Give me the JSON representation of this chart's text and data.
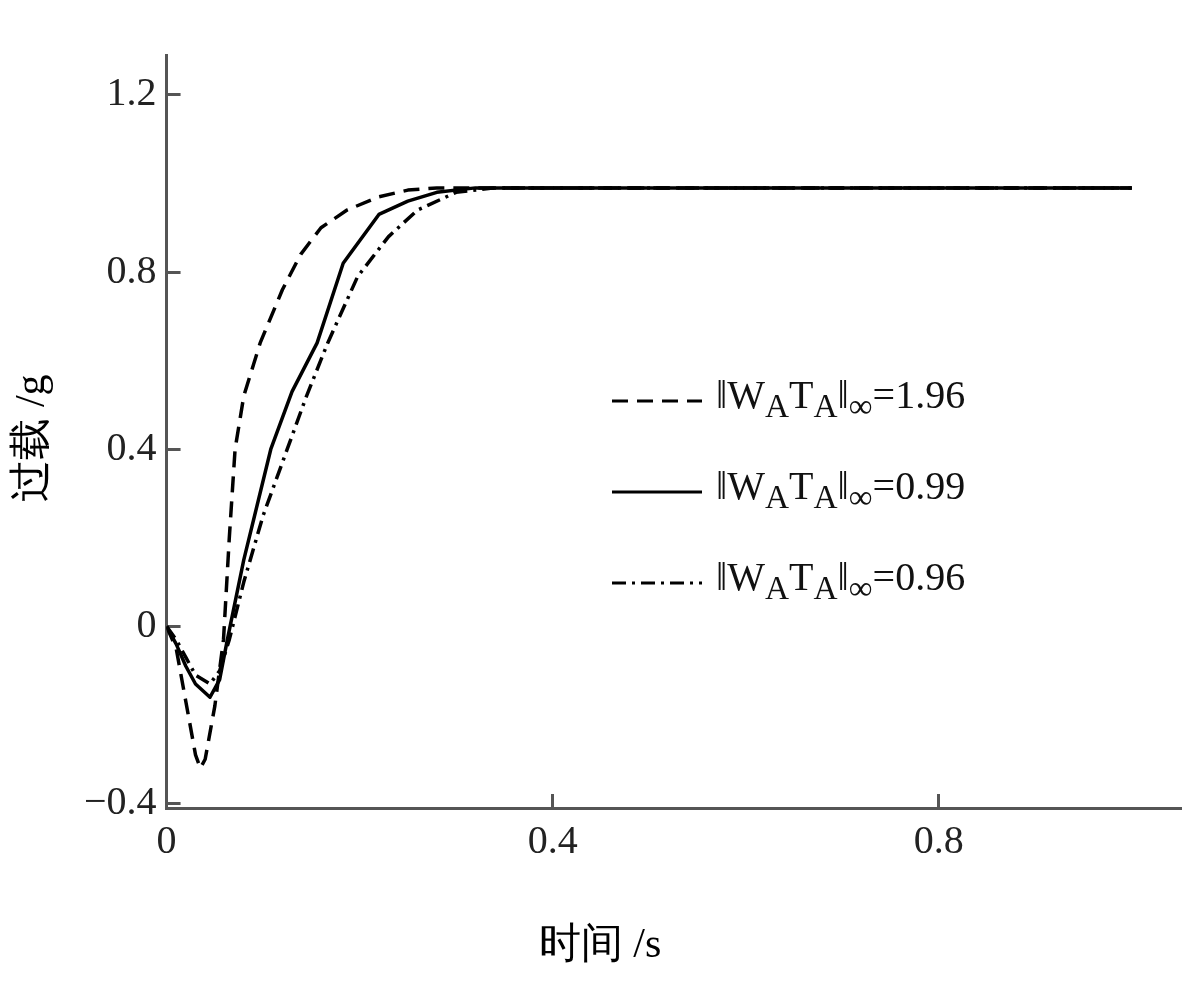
{
  "chart_data": {
    "type": "line",
    "xlabel": "时间 /s",
    "ylabel": "过载 /g",
    "xlim": [
      0,
      1.05
    ],
    "ylim": [
      -0.41,
      1.29
    ],
    "xticks": [
      0,
      0.4,
      0.8
    ],
    "yticks": [
      {
        "value": -0.4,
        "label": "−0.4"
      },
      0,
      0.4,
      0.8,
      1.2
    ],
    "grid": false,
    "legend": "right",
    "marker": "none",
    "series": [
      {
        "name": "‖W$_{A}$T$_{A}$‖$_{∞}$=1.96",
        "color": "#000000",
        "line_style": "dashed",
        "x": [
          0,
          0.01,
          0.02,
          0.03,
          0.035,
          0.04,
          0.05,
          0.059,
          0.065,
          0.071,
          0.08,
          0.097,
          0.12,
          0.139,
          0.16,
          0.187,
          0.22,
          0.25,
          0.28,
          0.32,
          0.4,
          0.6,
          0.8,
          1.0
        ],
        "values": [
          0,
          -0.05,
          -0.17,
          -0.29,
          -0.32,
          -0.3,
          -0.18,
          -0.03,
          0.2,
          0.4,
          0.52,
          0.64,
          0.76,
          0.84,
          0.9,
          0.94,
          0.97,
          0.985,
          0.99,
          0.99,
          0.99,
          0.99,
          0.99,
          0.99
        ]
      },
      {
        "name": "‖W$_{A}$T$_{A}$‖$_{∞}$=0.99",
        "color": "#000000",
        "line_style": "solid",
        "x": [
          0,
          0.01,
          0.02,
          0.03,
          0.045,
          0.055,
          0.063,
          0.08,
          0.108,
          0.13,
          0.156,
          0.183,
          0.22,
          0.25,
          0.28,
          0.32,
          0.4,
          0.6,
          0.8,
          1.0
        ],
        "values": [
          0,
          -0.04,
          -0.09,
          -0.13,
          -0.16,
          -0.12,
          -0.03,
          0.15,
          0.4,
          0.53,
          0.64,
          0.82,
          0.93,
          0.96,
          0.98,
          0.99,
          0.99,
          0.99,
          0.99,
          0.99
        ]
      },
      {
        "name": "‖W$_{A}$T$_{A}$‖$_{∞}$=0.96",
        "color": "#000000",
        "line_style": "dashdot",
        "x": [
          0,
          0.01,
          0.02,
          0.03,
          0.045,
          0.055,
          0.065,
          0.08,
          0.1,
          0.125,
          0.145,
          0.167,
          0.198,
          0.23,
          0.26,
          0.3,
          0.34,
          0.4,
          0.6,
          0.8,
          1.0
        ],
        "values": [
          0,
          -0.03,
          -0.07,
          -0.11,
          -0.13,
          -0.1,
          -0.03,
          0.1,
          0.25,
          0.4,
          0.52,
          0.64,
          0.79,
          0.88,
          0.94,
          0.98,
          0.99,
          0.99,
          0.99,
          0.99,
          0.99
        ]
      }
    ]
  }
}
